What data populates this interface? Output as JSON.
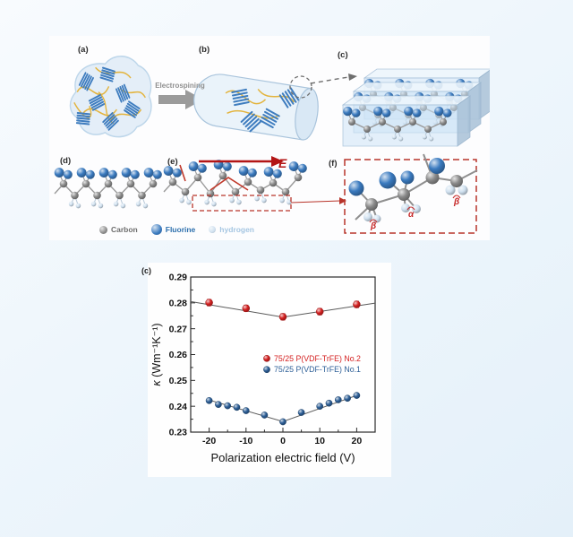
{
  "figure": {
    "panel_labels": {
      "a": "(a)",
      "b": "(b)",
      "c": "(c)",
      "d": "(d)",
      "e": "(e)",
      "f": "(f)"
    },
    "electrospinning_label": "Electrospining",
    "e_field_label": "E",
    "alpha_label": "α",
    "beta_label": "β",
    "colors": {
      "carbon": "#8a8a8a",
      "fluorine": "#3a7abf",
      "hydrogen": "#cfe0ef",
      "polymer_yellow": "#e3b43e",
      "accent_red": "#b8342a",
      "crystallite_blue": "#3f7dbf"
    },
    "legend": [
      {
        "label": "Carbon",
        "color": "#8a8a8a",
        "text_color": "#6e6e6e"
      },
      {
        "label": "Fluorine",
        "color": "#3a7abf",
        "text_color": "#2c6fad"
      },
      {
        "label": "hydrogen",
        "color": "#cfe0ef",
        "text_color": "#a5c6e2"
      }
    ]
  },
  "chart": {
    "panel_label": "(c)"
  },
  "chart_data": {
    "type": "scatter",
    "title": "",
    "xlabel": "Polarization electric field (V)",
    "ylabel": "κ (Wm⁻¹K⁻¹)",
    "xlim": [
      -25,
      25
    ],
    "ylim": [
      0.23,
      0.29
    ],
    "xticks": [
      -20,
      -10,
      0,
      10,
      20
    ],
    "x_minor_ticks": [
      -15,
      -5,
      5,
      15
    ],
    "yticks": [
      0.23,
      0.24,
      0.25,
      0.26,
      0.27,
      0.28,
      0.29
    ],
    "y_minor_ticks": [
      0.235,
      0.245,
      0.255,
      0.265,
      0.275,
      0.285
    ],
    "grid": false,
    "legend_position": "middle-right",
    "axis_color": "#2b2b2b",
    "fit_line_color": "#5a5a5a",
    "series": [
      {
        "name": "75/25 P(VDF-TrFE) No.2",
        "color": "#d42020",
        "x": [
          -20,
          -10,
          0,
          10,
          20
        ],
        "y": [
          0.2801,
          0.2779,
          0.2746,
          0.2766,
          0.2794
        ],
        "yerr": 0.0012,
        "fit_line": [
          [
            -25,
            0.2805
          ],
          [
            0,
            0.2745
          ],
          [
            25,
            0.2799
          ]
        ]
      },
      {
        "name": "75/25 P(VDF-TrFE) No.1",
        "color": "#2d5f97",
        "x": [
          -20,
          -17.5,
          -15,
          -12.5,
          -10,
          -5,
          0,
          5,
          10,
          12.5,
          15,
          17.5,
          20
        ],
        "y": [
          0.2422,
          0.2407,
          0.2402,
          0.2396,
          0.2383,
          0.2366,
          0.234,
          0.2376,
          0.24,
          0.2412,
          0.2425,
          0.2431,
          0.2442
        ],
        "yerr": 0.0006,
        "fit_line": [
          [
            -20,
            0.2424
          ],
          [
            0,
            0.2341
          ],
          [
            20,
            0.2442
          ]
        ]
      }
    ]
  }
}
